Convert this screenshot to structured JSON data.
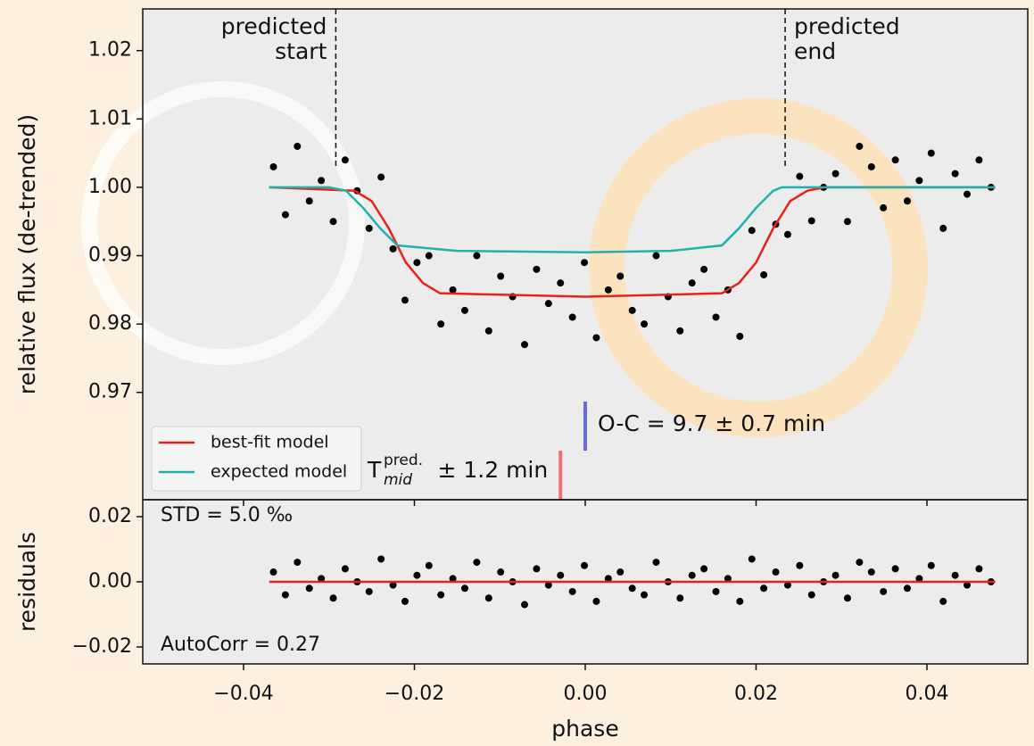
{
  "chart_data": [
    {
      "type": "scatter",
      "ylabel": "relative flux (de-trended)",
      "xlim": [
        -0.0518,
        0.0518
      ],
      "ylim": [
        0.9543,
        1.0261
      ],
      "yticks": [
        1.02,
        1.01,
        {
          "value": 1.0,
          "label": "1.00"
        },
        0.99,
        0.98,
        0.97
      ],
      "points": {
        "color": "#000000",
        "x": [
          -0.0365,
          -0.0351,
          -0.0337,
          -0.0323,
          -0.0309,
          -0.0295,
          -0.0281,
          -0.0267,
          -0.0253,
          -0.0239,
          -0.0225,
          -0.0211,
          -0.0197,
          -0.0183,
          -0.0169,
          -0.0155,
          -0.0141,
          -0.0127,
          -0.0113,
          -0.0099,
          -0.0085,
          -0.0071,
          -0.0057,
          -0.0043,
          -0.0029,
          -0.0015,
          -0.0001,
          0.0013,
          0.0027,
          0.0041,
          0.0055,
          0.0069,
          0.0083,
          0.0097,
          0.0111,
          0.0125,
          0.0139,
          0.0153,
          0.0167,
          0.0181,
          0.0195,
          0.0209,
          0.0223,
          0.0237,
          0.0251,
          0.0265,
          0.0279,
          0.0293,
          0.0307,
          0.0321,
          0.0335,
          0.0349,
          0.0363,
          0.0377,
          0.0391,
          0.0405,
          0.0419,
          0.0433,
          0.0447,
          0.0461,
          0.0475
        ],
        "y": [
          1.003,
          0.996,
          1.006,
          0.998,
          1.001,
          0.995,
          1.004,
          0.9995,
          0.994,
          1.0015,
          0.991,
          0.9835,
          0.989,
          0.99,
          0.98,
          0.985,
          0.982,
          0.99,
          0.979,
          0.987,
          0.984,
          0.977,
          0.988,
          0.983,
          0.986,
          0.981,
          0.989,
          0.978,
          0.985,
          0.987,
          0.982,
          0.98,
          0.99,
          0.984,
          0.979,
          0.986,
          0.988,
          0.981,
          0.985,
          0.9782,
          0.9937,
          0.9872,
          0.9946,
          0.9931,
          1.0016,
          0.9951,
          1.0,
          1.002,
          0.995,
          1.006,
          1.003,
          0.997,
          1.004,
          0.998,
          1.001,
          1.005,
          0.994,
          1.002,
          0.999,
          1.004,
          1.0
        ]
      },
      "series": [
        {
          "name": "best-fit model",
          "color": "#e8221b",
          "x": [
            -0.037,
            -0.027,
            -0.025,
            -0.023,
            -0.021,
            -0.019,
            -0.017,
            0.0,
            0.016,
            0.018,
            0.02,
            0.022,
            0.024,
            0.026,
            0.028,
            0.048
          ],
          "values": [
            1.0,
            0.9995,
            0.998,
            0.994,
            0.989,
            0.986,
            0.9845,
            0.984,
            0.9845,
            0.986,
            0.989,
            0.994,
            0.998,
            0.9995,
            1.0,
            1.0
          ]
        },
        {
          "name": "expected model",
          "color": "#20b2aa",
          "x": [
            -0.037,
            -0.03,
            -0.028,
            -0.026,
            -0.024,
            -0.022,
            -0.015,
            0.0,
            0.01,
            0.016,
            0.018,
            0.02,
            0.022,
            0.023,
            0.048
          ],
          "values": [
            1.0,
            1.0,
            0.9995,
            0.997,
            0.994,
            0.9915,
            0.9907,
            0.9905,
            0.9907,
            0.9915,
            0.994,
            0.997,
            0.9995,
            1.0,
            1.0
          ]
        }
      ],
      "legend": "lower left",
      "predicted_start": {
        "x": -0.0292,
        "text": [
          "predicted",
          "start"
        ]
      },
      "predicted_end": {
        "x": 0.0234,
        "text": [
          "predicted",
          "end"
        ]
      },
      "t_mid": {
        "x": -0.0029,
        "color": "#f07070",
        "symbol": "T",
        "sup": "pred.",
        "sub": "mid",
        "text": "± 1.2 min"
      },
      "o_c": {
        "x": 0.0,
        "color": "#6a6ae0",
        "text": "O-C = 9.7 ± 0.7 min"
      }
    },
    {
      "type": "scatter",
      "ylabel": "residuals",
      "xlabel": "phase",
      "xlim": [
        -0.0518,
        0.0518
      ],
      "xticks": [
        {
          "value": -0.04,
          "label": "−0.04"
        },
        {
          "value": -0.02,
          "label": "−0.02"
        },
        {
          "value": 0.0,
          "label": "0.00"
        },
        0.02,
        0.04
      ],
      "ylim": [
        -0.0252,
        0.0252
      ],
      "yticks": [
        0.02,
        {
          "value": 0.0,
          "label": "0.00"
        },
        {
          "value": -0.02,
          "label": "−0.02"
        }
      ],
      "points": {
        "color": "#000000",
        "values": [
          0.003,
          -0.004,
          0.006,
          -0.002,
          0.001,
          -0.005,
          0.004,
          0,
          -0.003,
          0.007,
          -0.001,
          -0.006,
          0.002,
          0.005,
          -0.004,
          0.001,
          -0.002,
          0.006,
          -0.005,
          0.003,
          0,
          -0.007,
          0.004,
          -0.001,
          0.002,
          -0.003,
          0.005,
          -0.006,
          0.001,
          0.003,
          -0.002,
          -0.004,
          0.006,
          0,
          -0.005,
          0.002,
          0.004,
          -0.003,
          0.001,
          -0.006,
          0.007,
          -0.002,
          0.003,
          -0.001,
          0.005,
          -0.004,
          0,
          0.002,
          -0.005,
          0.006,
          0.003,
          -0.003,
          0.004,
          -0.002,
          0.001,
          0.005,
          -0.006,
          0.002,
          -0.001,
          0.004,
          0
        ]
      },
      "model_line": {
        "color": "#e8221b",
        "x": [
          -0.037,
          0.048
        ],
        "values": [
          0,
          0
        ]
      },
      "std_label": "STD = 5.0 ‰",
      "autocorr_label": "AutoCorr = 0.27"
    }
  ]
}
